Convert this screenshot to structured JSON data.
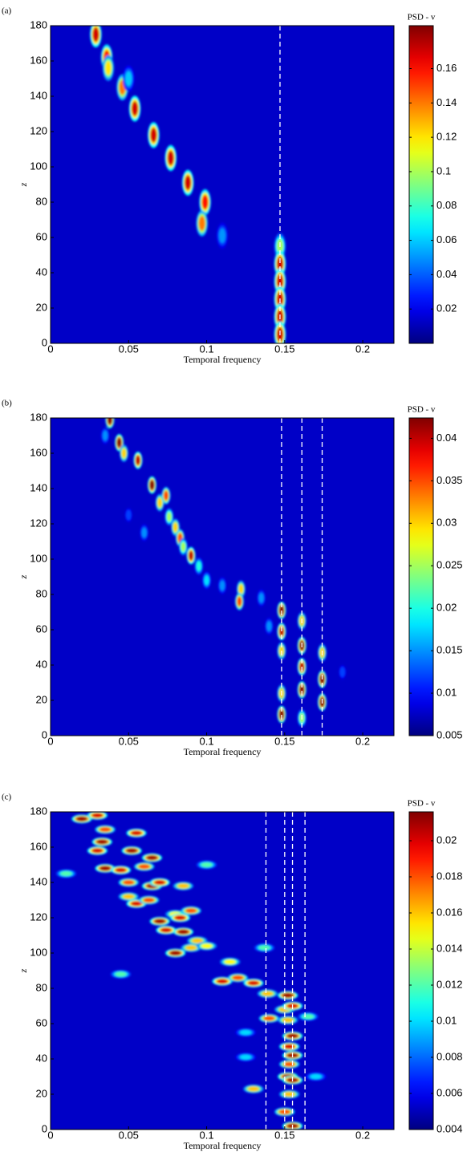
{
  "chart_data": [
    {
      "type": "heatmap",
      "panel_label": "(a)",
      "xlabel": "Temporal frequency",
      "ylabel": "z",
      "colorbar_label": "PSD - v",
      "colormap": "jet",
      "xlim": [
        0,
        0.22
      ],
      "xticks": [
        0,
        0.05,
        0.1,
        0.15,
        0.2
      ],
      "ylim": [
        0,
        180
      ],
      "yticks": [
        0,
        20,
        40,
        60,
        80,
        100,
        120,
        140,
        160,
        180
      ],
      "clim": [
        0,
        0.185
      ],
      "cticks": [
        0.02,
        0.04,
        0.06,
        0.08,
        0.1,
        0.12,
        0.14,
        0.16
      ],
      "vlines": [
        0.147
      ],
      "peaks": {
        "x": [
          0.029,
          0.036,
          0.037,
          0.046,
          0.054,
          0.066,
          0.077,
          0.088,
          0.099,
          0.097,
          0.05,
          0.11,
          0.147,
          0.147,
          0.147,
          0.147,
          0.147,
          0.147
        ],
        "z": [
          175,
          162,
          156,
          145,
          133,
          118,
          105,
          91,
          80,
          68,
          150,
          61,
          55,
          45,
          35,
          25,
          15,
          5
        ],
        "values": [
          0.17,
          0.16,
          0.12,
          0.14,
          0.17,
          0.17,
          0.17,
          0.17,
          0.16,
          0.14,
          0.06,
          0.05,
          0.1,
          0.17,
          0.17,
          0.17,
          0.17,
          0.17
        ]
      }
    },
    {
      "type": "heatmap",
      "panel_label": "(b)",
      "xlabel": "Temporal frequency",
      "ylabel": "z",
      "colorbar_label": "PSD - v",
      "colormap": "jet",
      "xlim": [
        0,
        0.22
      ],
      "xticks": [
        0,
        0.05,
        0.1,
        0.15,
        0.2
      ],
      "ylim": [
        0,
        180
      ],
      "yticks": [
        0,
        20,
        40,
        60,
        80,
        100,
        120,
        140,
        160,
        180
      ],
      "clim": [
        0.005,
        0.0424
      ],
      "cticks": [
        0.005,
        0.01,
        0.015,
        0.02,
        0.025,
        0.03,
        0.035,
        0.04
      ],
      "vlines": [
        0.148,
        0.161,
        0.174
      ],
      "peaks": {
        "x": [
          0.038,
          0.044,
          0.047,
          0.056,
          0.065,
          0.07,
          0.074,
          0.076,
          0.08,
          0.083,
          0.085,
          0.09,
          0.095,
          0.1,
          0.11,
          0.122,
          0.121,
          0.135,
          0.148,
          0.148,
          0.148,
          0.148,
          0.148,
          0.161,
          0.161,
          0.161,
          0.161,
          0.161,
          0.174,
          0.174,
          0.174,
          0.14,
          0.06,
          0.05,
          0.035,
          0.187
        ],
        "z": [
          179,
          166,
          160,
          156,
          142,
          132,
          136,
          124,
          118,
          112,
          107,
          102,
          96,
          88,
          85,
          83,
          76,
          78,
          71,
          59,
          48,
          24,
          12,
          65,
          51,
          39,
          26,
          10,
          47,
          32,
          19,
          62,
          115,
          125,
          170,
          36
        ],
        "values": [
          0.042,
          0.042,
          0.03,
          0.04,
          0.042,
          0.03,
          0.035,
          0.025,
          0.03,
          0.035,
          0.025,
          0.04,
          0.02,
          0.018,
          0.015,
          0.03,
          0.035,
          0.015,
          0.042,
          0.04,
          0.03,
          0.03,
          0.042,
          0.03,
          0.042,
          0.04,
          0.042,
          0.025,
          0.03,
          0.042,
          0.042,
          0.015,
          0.015,
          0.012,
          0.015,
          0.012
        ]
      }
    },
    {
      "type": "heatmap",
      "panel_label": "(c)",
      "xlabel": "Temporal frequency",
      "ylabel": "z",
      "colorbar_label": "PSD - v",
      "colormap": "jet",
      "xlim": [
        0,
        0.22
      ],
      "xticks": [
        0,
        0.05,
        0.1,
        0.15,
        0.2
      ],
      "ylim": [
        0,
        180
      ],
      "yticks": [
        0,
        20,
        40,
        60,
        80,
        100,
        120,
        140,
        160,
        180
      ],
      "clim": [
        0.004,
        0.0216
      ],
      "cticks": [
        0.004,
        0.006,
        0.008,
        0.01,
        0.012,
        0.014,
        0.016,
        0.018,
        0.02
      ],
      "vlines": [
        0.138,
        0.15,
        0.155,
        0.163
      ],
      "peaks": {
        "x": [
          0.02,
          0.03,
          0.035,
          0.055,
          0.033,
          0.03,
          0.052,
          0.065,
          0.035,
          0.045,
          0.06,
          0.05,
          0.065,
          0.07,
          0.085,
          0.05,
          0.055,
          0.063,
          0.08,
          0.07,
          0.083,
          0.09,
          0.074,
          0.085,
          0.094,
          0.08,
          0.09,
          0.1,
          0.115,
          0.11,
          0.12,
          0.13,
          0.137,
          0.139,
          0.152,
          0.15,
          0.155,
          0.14,
          0.152,
          0.155,
          0.153,
          0.155,
          0.153,
          0.152,
          0.155,
          0.153,
          0.13,
          0.15,
          0.155,
          0.165,
          0.01,
          0.1,
          0.17,
          0.125,
          0.125,
          0.045
        ],
        "z": [
          176,
          178,
          170,
          168,
          163,
          158,
          158,
          154,
          148,
          147,
          149,
          140,
          138,
          140,
          138,
          132,
          128,
          130,
          122,
          118,
          120,
          124,
          113,
          112,
          107,
          100,
          103,
          104,
          95,
          84,
          86,
          83,
          103,
          77,
          76,
          68,
          70,
          63,
          62,
          53,
          47,
          42,
          37,
          30,
          28,
          20,
          23,
          10,
          2,
          64,
          145,
          150,
          30,
          41,
          55,
          88
        ],
        "values": [
          0.021,
          0.02,
          0.018,
          0.02,
          0.021,
          0.02,
          0.021,
          0.021,
          0.021,
          0.02,
          0.018,
          0.018,
          0.021,
          0.02,
          0.016,
          0.016,
          0.02,
          0.018,
          0.015,
          0.021,
          0.02,
          0.018,
          0.02,
          0.021,
          0.016,
          0.021,
          0.016,
          0.015,
          0.015,
          0.02,
          0.018,
          0.02,
          0.012,
          0.016,
          0.021,
          0.016,
          0.02,
          0.018,
          0.016,
          0.021,
          0.02,
          0.021,
          0.018,
          0.021,
          0.021,
          0.016,
          0.016,
          0.018,
          0.021,
          0.012,
          0.012,
          0.012,
          0.01,
          0.01,
          0.01,
          0.012
        ]
      }
    }
  ]
}
